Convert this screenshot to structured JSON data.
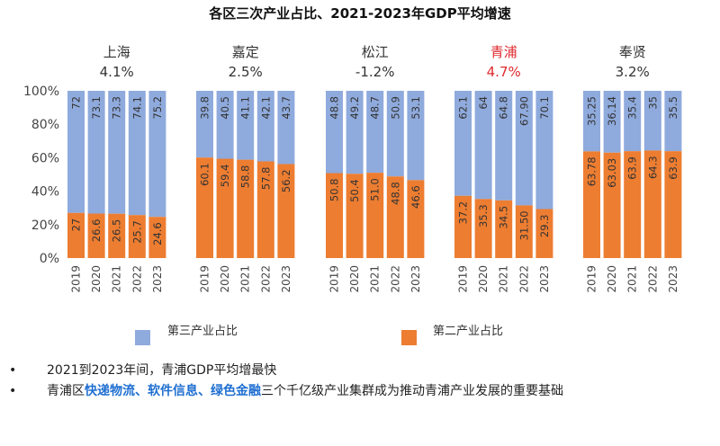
{
  "chart_data": {
    "type": "bar",
    "stacked": true,
    "title": "各区三次产业占比、2021-2023年GDP平均增速",
    "ylim": [
      0,
      100
    ],
    "yticks": [
      "0%",
      "20%",
      "40%",
      "60%",
      "80%",
      "100%"
    ],
    "years": [
      "2019",
      "2020",
      "2021",
      "2022",
      "2023"
    ],
    "series_colors": {
      "tertiary": "#8faadc",
      "secondary": "#ed7d31"
    },
    "legend": [
      "第三产业占比",
      "第二产业占比"
    ],
    "legend_position": "bottom",
    "highlight_color": "#e0282e",
    "groups": [
      {
        "name": "上海",
        "growth": "4.1%",
        "highlight": false,
        "secondary": [
          27,
          26.6,
          26.5,
          25.7,
          24.6
        ],
        "secondary_labels": [
          "27",
          "26.6",
          "26.5",
          "25.7",
          "24.6"
        ],
        "tertiary_labels": [
          "72",
          "73.1",
          "73.3",
          "74.1",
          "75.2"
        ]
      },
      {
        "name": "嘉定",
        "growth": "2.5%",
        "highlight": false,
        "secondary": [
          60.1,
          59.4,
          58.8,
          57.8,
          56.2
        ],
        "secondary_labels": [
          "60.1",
          "59.4",
          "58.8",
          "57.8",
          "56.2"
        ],
        "tertiary_labels": [
          "39.8",
          "40.5",
          "41.1",
          "42.1",
          "43.7"
        ]
      },
      {
        "name": "松江",
        "growth": "-1.2%",
        "highlight": false,
        "secondary": [
          50.8,
          50.4,
          51.0,
          48.8,
          46.6
        ],
        "secondary_labels": [
          "50.8",
          "50.4",
          "51.0",
          "48.8",
          "46.6"
        ],
        "tertiary_labels": [
          "48.8",
          "49.2",
          "48.7",
          "50.9",
          "53.1"
        ]
      },
      {
        "name": "青浦",
        "growth": "4.7%",
        "highlight": true,
        "secondary": [
          37.2,
          35.3,
          34.5,
          31.5,
          29.3
        ],
        "secondary_labels": [
          "37.2",
          "35.3",
          "34.5",
          "31.50",
          "29.3"
        ],
        "tertiary_labels": [
          "62.1",
          "64",
          "64.8",
          "67.90",
          "70.1"
        ]
      },
      {
        "name": "奉贤",
        "growth": "3.2%",
        "highlight": false,
        "secondary": [
          63.78,
          63.03,
          63.9,
          64.3,
          63.9
        ],
        "secondary_labels": [
          "63.78",
          "63.03",
          "63.9",
          "64.3",
          "63.9"
        ],
        "tertiary_labels": [
          "35.25",
          "36.14",
          "35.4",
          "35",
          "35.5"
        ]
      }
    ]
  },
  "bullets": {
    "dot": "•",
    "line1": "2021到2023年间，青浦GDP平均增最快",
    "line2_prefix": "青浦区",
    "hl1": "快递物流",
    "sep1": "、",
    "hl2": "软件信息",
    "sep2": "、",
    "hl3": "绿色金融",
    "line2_suffix": "三个千亿级产业集群成为推动青浦产业发展的重要基础"
  }
}
